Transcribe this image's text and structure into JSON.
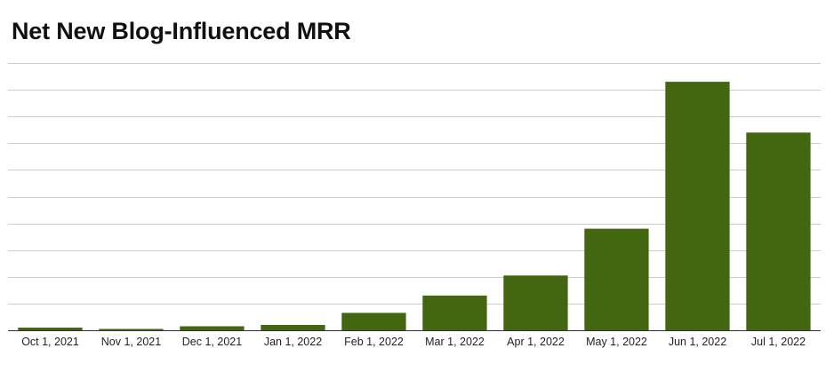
{
  "chart_data": {
    "type": "bar",
    "title": "Net New Blog-Influenced MRR",
    "categories": [
      "Oct 1, 2021",
      "Nov 1, 2021",
      "Dec 1, 2021",
      "Jan 1, 2022",
      "Feb 1, 2022",
      "Mar 1, 2022",
      "Apr 1, 2022",
      "May 1, 2022",
      "Jun 1, 2022",
      "Jul 1, 2022"
    ],
    "values": [
      0.1,
      0.05,
      0.15,
      0.2,
      0.65,
      1.3,
      2.05,
      3.8,
      9.3,
      7.4
    ],
    "ylim": [
      0,
      10
    ],
    "grid": true,
    "legend": "none",
    "xlabel": "",
    "ylabel": "",
    "colors": {
      "bar": "#436611",
      "grid": "#cccccc",
      "axis": "#333333"
    }
  }
}
